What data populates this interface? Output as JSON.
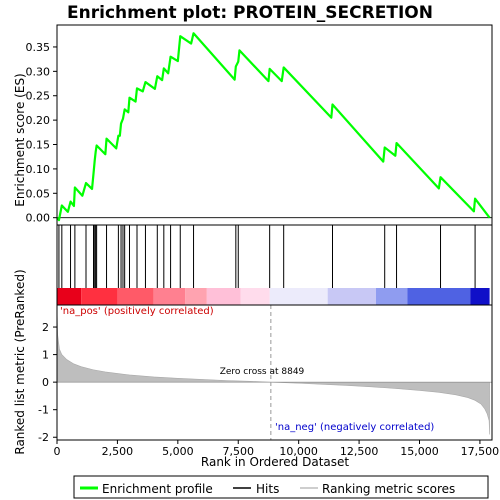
{
  "chart_data": {
    "type": "line",
    "title": "Enrichment plot: PROTEIN_SECRETION",
    "panels": {
      "enrichment": {
        "ylabel": "Enrichment score (ES)",
        "ylim": [
          -0.015,
          0.395
        ],
        "yticks": [
          0.0,
          0.05,
          0.1,
          0.15,
          0.2,
          0.25,
          0.3,
          0.35
        ],
        "ytick_labels": [
          "0.00",
          "0.05",
          "0.10",
          "0.15",
          "0.20",
          "0.25",
          "0.30",
          "0.35"
        ],
        "series": {
          "name": "Enrichment profile",
          "color": "#00ff00",
          "x": [
            0,
            80,
            200,
            450,
            560,
            700,
            740,
            1050,
            1200,
            1450,
            1510,
            1560,
            1600,
            1640,
            2000,
            2050,
            2450,
            2540,
            2600,
            2650,
            2730,
            2800,
            2950,
            3000,
            3250,
            3310,
            3550,
            3660,
            4050,
            4150,
            4350,
            4420,
            4600,
            4700,
            5000,
            5100,
            5550,
            5650,
            7350,
            7400,
            7500,
            7550,
            8750,
            8800,
            9300,
            9380,
            11350,
            11400,
            13500,
            13560,
            14000,
            14050,
            15800,
            15870,
            17250,
            17300,
            17900
          ],
          "y": [
            0.0,
            -0.005,
            0.025,
            0.012,
            0.033,
            0.024,
            0.062,
            0.045,
            0.071,
            0.059,
            0.09,
            0.117,
            0.135,
            0.148,
            0.13,
            0.162,
            0.142,
            0.168,
            0.168,
            0.193,
            0.203,
            0.222,
            0.216,
            0.246,
            0.238,
            0.265,
            0.259,
            0.278,
            0.264,
            0.29,
            0.282,
            0.306,
            0.296,
            0.33,
            0.321,
            0.372,
            0.357,
            0.378,
            0.283,
            0.31,
            0.32,
            0.343,
            0.28,
            0.305,
            0.28,
            0.308,
            0.205,
            0.232,
            0.115,
            0.144,
            0.127,
            0.153,
            0.06,
            0.083,
            0.013,
            0.039,
            0.0
          ]
        }
      },
      "hits": {
        "name": "Hits",
        "positions": [
          80,
          200,
          560,
          740,
          1200,
          1510,
          1560,
          1600,
          1640,
          2050,
          2540,
          2650,
          2730,
          2800,
          3000,
          3310,
          3660,
          4150,
          4420,
          4700,
          5100,
          5650,
          7400,
          7500,
          8800,
          9380,
          11400,
          13560,
          14050,
          15870,
          17300
        ]
      },
      "metric": {
        "ylabel": "Ranked list metric (PreRanked)",
        "xlabel": "Rank in Ordered Dataset",
        "xlim": [
          0,
          18000
        ],
        "ylim": [
          -2.1,
          2.8
        ],
        "xticks": [
          0,
          2500,
          5000,
          7500,
          10000,
          12500,
          15000,
          17500
        ],
        "xtick_labels": [
          "0",
          "2,500",
          "5,000",
          "7,500",
          "10,000",
          "12,500",
          "15,000",
          "17,500"
        ],
        "yticks": [
          -2,
          -1,
          0,
          1,
          2
        ],
        "ytick_labels": [
          "-2",
          "-1",
          "0",
          "1",
          "2"
        ],
        "zero_cross": 8849,
        "zero_cross_label": "Zero cross at 8849",
        "pos_label": "'na_pos' (positively correlated)",
        "neg_label": "'na_neg' (negatively correlated)",
        "profile_x": [
          0,
          30,
          100,
          200,
          400,
          700,
          1000,
          1500,
          2000,
          3000,
          4000,
          5000,
          6000,
          7000,
          8000,
          8849,
          10000,
          11000,
          12000,
          13000,
          14000,
          15000,
          15800,
          16500,
          17000,
          17300,
          17550,
          17700,
          17800,
          17880,
          17900
        ],
        "profile_y": [
          2.7,
          1.7,
          1.2,
          1.0,
          0.82,
          0.66,
          0.56,
          0.45,
          0.37,
          0.26,
          0.19,
          0.14,
          0.1,
          0.06,
          0.03,
          0.0,
          -0.04,
          -0.08,
          -0.12,
          -0.17,
          -0.23,
          -0.3,
          -0.37,
          -0.46,
          -0.56,
          -0.66,
          -0.8,
          -0.97,
          -1.15,
          -1.4,
          -1.9
        ]
      }
    },
    "color_bar": {
      "segments": [
        {
          "from": 0,
          "to": 1000,
          "color": "#e8001a"
        },
        {
          "from": 1000,
          "to": 2500,
          "color": "#ff3040"
        },
        {
          "from": 2500,
          "to": 4000,
          "color": "#ff5a68"
        },
        {
          "from": 4000,
          "to": 5300,
          "color": "#ff8090"
        },
        {
          "from": 5300,
          "to": 6200,
          "color": "#ffa3b0"
        },
        {
          "from": 6200,
          "to": 7600,
          "color": "#ffc0d8"
        },
        {
          "from": 7600,
          "to": 8800,
          "color": "#ffdcec"
        },
        {
          "from": 8800,
          "to": 11200,
          "color": "#ecebfb"
        },
        {
          "from": 11200,
          "to": 13200,
          "color": "#c8c8f5"
        },
        {
          "from": 13200,
          "to": 14500,
          "color": "#8f9cf0"
        },
        {
          "from": 14500,
          "to": 17100,
          "color": "#4f62e3"
        },
        {
          "from": 17100,
          "to": 17900,
          "color": "#1010c8"
        }
      ]
    },
    "legend": {
      "items": [
        {
          "label": "Enrichment profile",
          "color": "#00ff00"
        },
        {
          "label": "Hits",
          "color": "#000000"
        },
        {
          "label": "Ranking metric scores",
          "color": "#bebebe"
        }
      ]
    }
  }
}
